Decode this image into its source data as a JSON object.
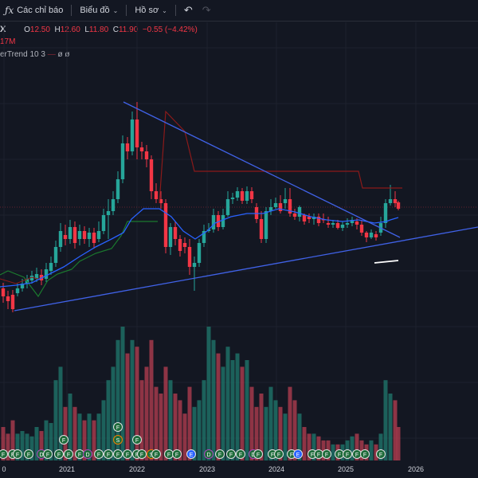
{
  "toolbar": {
    "indicators_label": "Các chỉ báo",
    "chart_label": "Biểu đồ",
    "profile_label": "Hồ sơ"
  },
  "legend": {
    "symbol": "X",
    "open_key": "O",
    "open_val": "12.50",
    "high_key": "H",
    "high_val": "12.60",
    "low_key": "L",
    "low_val": "11.80",
    "close_key": "C",
    "close_val": "11.90",
    "change": "−0.55 (−4.42%)",
    "volume": "17M",
    "supertrend_name": "erTrend",
    "supertrend_params": "10 3",
    "supertrend_val1": "—",
    "supertrend_val2": "ø",
    "supertrend_val3": "ø"
  },
  "colors": {
    "up": "#26a69a",
    "down": "#f23645",
    "trendline": "#4062e8",
    "ma": "#2962ff",
    "supertrend_up": "#1b7a2e",
    "supertrend_down": "#8b1a1a",
    "vol_up": "#1f6e65",
    "vol_down": "#a53a4b"
  },
  "chart_data": {
    "type": "candlestick",
    "x_axis_labels": [
      "0",
      "2021",
      "2022",
      "2023",
      "2024",
      "2025",
      "2026"
    ],
    "event_icons": [
      "F",
      "S",
      "D",
      "E"
    ]
  }
}
